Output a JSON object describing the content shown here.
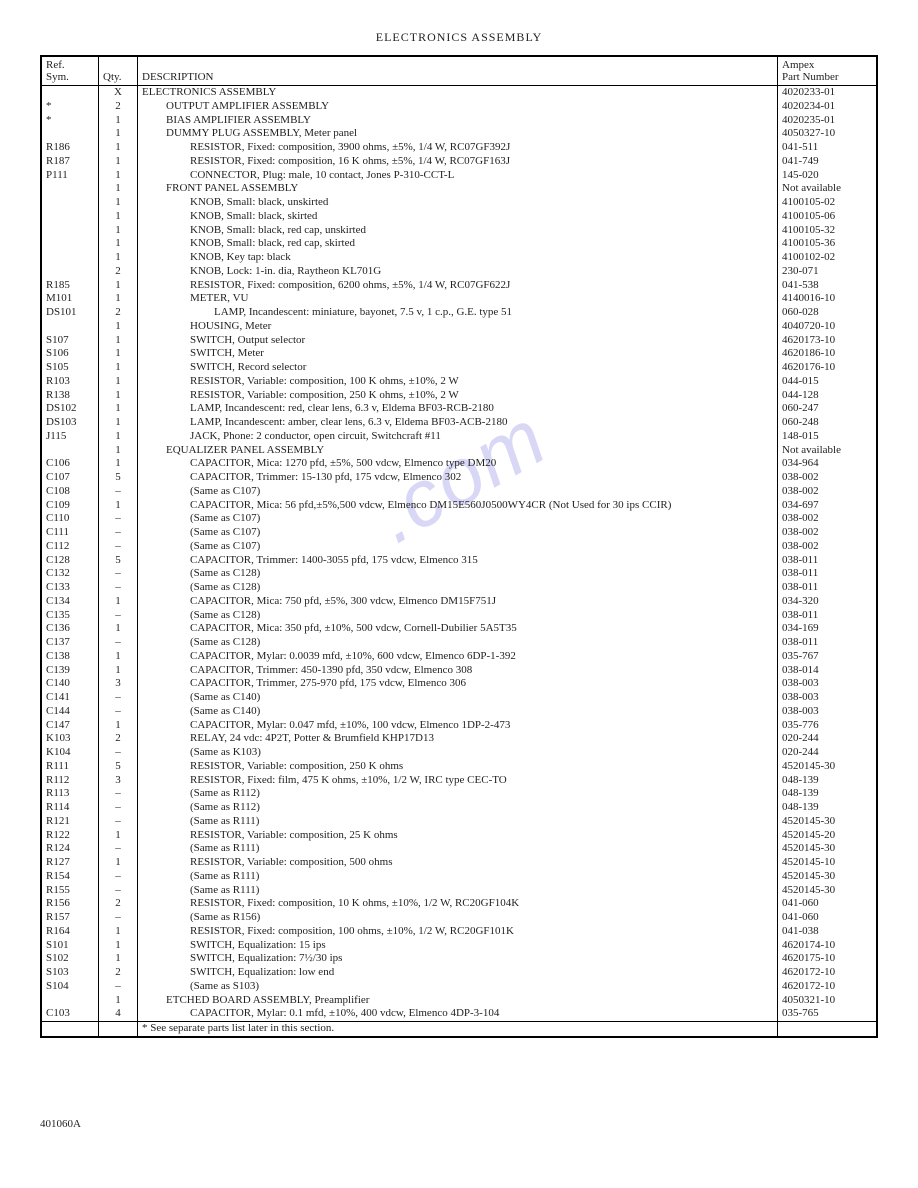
{
  "page_title": "ELECTRONICS ASSEMBLY",
  "doc_footer": "401060A",
  "headers": {
    "ref1": "Ref.",
    "ref2": "Sym.",
    "qty": "Qty.",
    "desc": "DESCRIPTION",
    "part1": "Ampex",
    "part2": "Part Number"
  },
  "footnote": "*  See separate parts list later in this section.",
  "rows": [
    {
      "ref": "",
      "qty": "X",
      "indent": 0,
      "desc": "ELECTRONICS ASSEMBLY",
      "part": "4020233-01"
    },
    {
      "ref": "*",
      "qty": "2",
      "indent": 1,
      "desc": "OUTPUT AMPLIFIER ASSEMBLY",
      "part": "4020234-01"
    },
    {
      "ref": "*",
      "qty": "1",
      "indent": 1,
      "desc": "BIAS AMPLIFIER ASSEMBLY",
      "part": "4020235-01"
    },
    {
      "ref": "",
      "qty": "1",
      "indent": 1,
      "desc": "DUMMY PLUG ASSEMBLY, Meter panel",
      "part": "4050327-10"
    },
    {
      "ref": "R186",
      "qty": "1",
      "indent": 2,
      "desc": "RESISTOR, Fixed: composition, 3900 ohms, ±5%, 1/4 W, RC07GF392J",
      "part": "041-511"
    },
    {
      "ref": "R187",
      "qty": "1",
      "indent": 2,
      "desc": "RESISTOR, Fixed: composition, 16 K ohms, ±5%, 1/4 W, RC07GF163J",
      "part": "041-749"
    },
    {
      "ref": "P111",
      "qty": "1",
      "indent": 2,
      "desc": "CONNECTOR, Plug: male, 10 contact, Jones P-310-CCT-L",
      "part": "145-020"
    },
    {
      "ref": "",
      "qty": "1",
      "indent": 1,
      "desc": "FRONT PANEL ASSEMBLY",
      "part": "Not available"
    },
    {
      "ref": "",
      "qty": "1",
      "indent": 2,
      "desc": "KNOB, Small: black, unskirted",
      "part": "4100105-02"
    },
    {
      "ref": "",
      "qty": "1",
      "indent": 2,
      "desc": "KNOB, Small: black, skirted",
      "part": "4100105-06"
    },
    {
      "ref": "",
      "qty": "1",
      "indent": 2,
      "desc": "KNOB, Small: black, red cap, unskirted",
      "part": "4100105-32"
    },
    {
      "ref": "",
      "qty": "1",
      "indent": 2,
      "desc": "KNOB, Small: black, red cap, skirted",
      "part": "4100105-36"
    },
    {
      "ref": "",
      "qty": "1",
      "indent": 2,
      "desc": "KNOB, Key tap: black",
      "part": "4100102-02"
    },
    {
      "ref": "",
      "qty": "2",
      "indent": 2,
      "desc": "KNOB, Lock: 1-in. dia, Raytheon KL701G",
      "part": "230-071"
    },
    {
      "ref": "R185",
      "qty": "1",
      "indent": 2,
      "desc": "RESISTOR, Fixed: composition, 6200 ohms, ±5%, 1/4 W, RC07GF622J",
      "part": "041-538"
    },
    {
      "ref": "M101",
      "qty": "1",
      "indent": 2,
      "desc": "METER, VU",
      "part": "4140016-10"
    },
    {
      "ref": "DS101",
      "qty": "2",
      "indent": 3,
      "desc": "LAMP, Incandescent: miniature, bayonet, 7.5 v, 1 c.p., G.E. type 51",
      "part": "060-028"
    },
    {
      "ref": "",
      "qty": "1",
      "indent": 2,
      "desc": "HOUSING, Meter",
      "part": "4040720-10"
    },
    {
      "ref": "S107",
      "qty": "1",
      "indent": 2,
      "desc": "SWITCH, Output selector",
      "part": "4620173-10"
    },
    {
      "ref": "S106",
      "qty": "1",
      "indent": 2,
      "desc": "SWITCH, Meter",
      "part": "4620186-10"
    },
    {
      "ref": "S105",
      "qty": "1",
      "indent": 2,
      "desc": "SWITCH, Record selector",
      "part": "4620176-10"
    },
    {
      "ref": "R103",
      "qty": "1",
      "indent": 2,
      "desc": "RESISTOR, Variable: composition, 100 K ohms, ±10%, 2 W",
      "part": "044-015"
    },
    {
      "ref": "R138",
      "qty": "1",
      "indent": 2,
      "desc": "RESISTOR, Variable: composition, 250 K ohms, ±10%, 2 W",
      "part": "044-128"
    },
    {
      "ref": "DS102",
      "qty": "1",
      "indent": 2,
      "desc": "LAMP, Incandescent: red, clear lens, 6.3 v, Eldema BF03-RCB-2180",
      "part": "060-247"
    },
    {
      "ref": "DS103",
      "qty": "1",
      "indent": 2,
      "desc": "LAMP, Incandescent: amber, clear lens, 6.3 v, Eldema BF03-ACB-2180",
      "part": "060-248"
    },
    {
      "ref": "J115",
      "qty": "1",
      "indent": 2,
      "desc": "JACK, Phone: 2 conductor, open circuit, Switchcraft #11",
      "part": "148-015"
    },
    {
      "ref": "",
      "qty": "1",
      "indent": 1,
      "desc": "EQUALIZER PANEL ASSEMBLY",
      "part": "Not available"
    },
    {
      "ref": "C106",
      "qty": "1",
      "indent": 2,
      "desc": "CAPACITOR, Mica: 1270 pfd, ±5%, 500 vdcw, Elmenco type DM20",
      "part": "034-964"
    },
    {
      "ref": "C107",
      "qty": "5",
      "indent": 2,
      "desc": "CAPACITOR, Trimmer: 15-130 pfd, 175 vdcw, Elmenco 302",
      "part": "038-002"
    },
    {
      "ref": "C108",
      "qty": "–",
      "indent": 2,
      "desc": "(Same as C107)",
      "part": "038-002"
    },
    {
      "ref": "C109",
      "qty": "1",
      "indent": 2,
      "desc": "CAPACITOR, Mica: 56 pfd,±5%,500 vdcw, Elmenco DM15E560J0500WY4CR (Not Used for 30 ips CCIR)",
      "part": "034-697"
    },
    {
      "ref": "C110",
      "qty": "–",
      "indent": 2,
      "desc": "(Same as C107)",
      "part": "038-002"
    },
    {
      "ref": "C111",
      "qty": "–",
      "indent": 2,
      "desc": "(Same as C107)",
      "part": "038-002"
    },
    {
      "ref": "C112",
      "qty": "–",
      "indent": 2,
      "desc": "(Same as C107)",
      "part": "038-002"
    },
    {
      "ref": "C128",
      "qty": "5",
      "indent": 2,
      "desc": "CAPACITOR, Trimmer: 1400-3055 pfd, 175 vdcw, Elmenco 315",
      "part": "038-011"
    },
    {
      "ref": "C132",
      "qty": "–",
      "indent": 2,
      "desc": "(Same as C128)",
      "part": "038-011"
    },
    {
      "ref": "C133",
      "qty": "–",
      "indent": 2,
      "desc": "(Same as C128)",
      "part": "038-011"
    },
    {
      "ref": "C134",
      "qty": "1",
      "indent": 2,
      "desc": "CAPACITOR, Mica: 750 pfd, ±5%, 300 vdcw, Elmenco DM15F751J",
      "part": "034-320"
    },
    {
      "ref": "C135",
      "qty": "–",
      "indent": 2,
      "desc": "(Same as C128)",
      "part": "038-011"
    },
    {
      "ref": "C136",
      "qty": "1",
      "indent": 2,
      "desc": "CAPACITOR, Mica: 350 pfd, ±10%, 500 vdcw, Cornell-Dubilier 5A5T35",
      "part": "034-169"
    },
    {
      "ref": "C137",
      "qty": "–",
      "indent": 2,
      "desc": "(Same as C128)",
      "part": "038-011"
    },
    {
      "ref": "C138",
      "qty": "1",
      "indent": 2,
      "desc": "CAPACITOR, Mylar: 0.0039 mfd, ±10%, 600 vdcw, Elmenco 6DP-1-392",
      "part": "035-767"
    },
    {
      "ref": "C139",
      "qty": "1",
      "indent": 2,
      "desc": "CAPACITOR, Trimmer: 450-1390 pfd, 350 vdcw, Elmenco 308",
      "part": "038-014"
    },
    {
      "ref": "C140",
      "qty": "3",
      "indent": 2,
      "desc": "CAPACITOR, Trimmer, 275-970 pfd, 175 vdcw, Elmenco 306",
      "part": "038-003"
    },
    {
      "ref": "C141",
      "qty": "–",
      "indent": 2,
      "desc": "(Same as C140)",
      "part": "038-003"
    },
    {
      "ref": "C144",
      "qty": "–",
      "indent": 2,
      "desc": "(Same as C140)",
      "part": "038-003"
    },
    {
      "ref": "C147",
      "qty": "1",
      "indent": 2,
      "desc": "CAPACITOR, Mylar: 0.047 mfd, ±10%, 100 vdcw, Elmenco 1DP-2-473",
      "part": "035-776"
    },
    {
      "ref": "K103",
      "qty": "2",
      "indent": 2,
      "desc": "RELAY, 24 vdc: 4P2T, Potter & Brumfield KHP17D13",
      "part": "020-244"
    },
    {
      "ref": "K104",
      "qty": "–",
      "indent": 2,
      "desc": "(Same as K103)",
      "part": "020-244"
    },
    {
      "ref": "R111",
      "qty": "5",
      "indent": 2,
      "desc": "RESISTOR, Variable: composition, 250 K ohms",
      "part": "4520145-30"
    },
    {
      "ref": "R112",
      "qty": "3",
      "indent": 2,
      "desc": "RESISTOR, Fixed: film, 475 K ohms, ±10%, 1/2 W, IRC type CEC-TO",
      "part": "048-139"
    },
    {
      "ref": "R113",
      "qty": "–",
      "indent": 2,
      "desc": "(Same as R112)",
      "part": "048-139"
    },
    {
      "ref": "R114",
      "qty": "–",
      "indent": 2,
      "desc": "(Same as R112)",
      "part": "048-139"
    },
    {
      "ref": "R121",
      "qty": "–",
      "indent": 2,
      "desc": "(Same as R111)",
      "part": "4520145-30"
    },
    {
      "ref": "R122",
      "qty": "1",
      "indent": 2,
      "desc": "RESISTOR, Variable: composition, 25 K ohms",
      "part": "4520145-20"
    },
    {
      "ref": "R124",
      "qty": "–",
      "indent": 2,
      "desc": "(Same as R111)",
      "part": "4520145-30"
    },
    {
      "ref": "R127",
      "qty": "1",
      "indent": 2,
      "desc": "RESISTOR, Variable: composition, 500 ohms",
      "part": "4520145-10"
    },
    {
      "ref": "R154",
      "qty": "–",
      "indent": 2,
      "desc": "(Same as R111)",
      "part": "4520145-30"
    },
    {
      "ref": "R155",
      "qty": "–",
      "indent": 2,
      "desc": "(Same as R111)",
      "part": "4520145-30"
    },
    {
      "ref": "R156",
      "qty": "2",
      "indent": 2,
      "desc": "RESISTOR, Fixed: composition, 10 K ohms, ±10%, 1/2 W, RC20GF104K",
      "part": "041-060"
    },
    {
      "ref": "R157",
      "qty": "–",
      "indent": 2,
      "desc": "(Same as R156)",
      "part": "041-060"
    },
    {
      "ref": "R164",
      "qty": "1",
      "indent": 2,
      "desc": "RESISTOR, Fixed: composition, 100 ohms, ±10%, 1/2 W, RC20GF101K",
      "part": "041-038"
    },
    {
      "ref": "S101",
      "qty": "1",
      "indent": 2,
      "desc": "SWITCH, Equalization: 15 ips",
      "part": "4620174-10"
    },
    {
      "ref": "S102",
      "qty": "1",
      "indent": 2,
      "desc": "SWITCH, Equalization: 7½/30 ips",
      "part": "4620175-10"
    },
    {
      "ref": "S103",
      "qty": "2",
      "indent": 2,
      "desc": "SWITCH, Equalization: low end",
      "part": "4620172-10"
    },
    {
      "ref": "S104",
      "qty": "–",
      "indent": 2,
      "desc": "(Same as S103)",
      "part": "4620172-10"
    },
    {
      "ref": "",
      "qty": "1",
      "indent": 1,
      "desc": "ETCHED BOARD ASSEMBLY, Preamplifier",
      "part": "4050321-10"
    },
    {
      "ref": "C103",
      "qty": "4",
      "indent": 2,
      "desc": "CAPACITOR, Mylar: 0.1 mfd, ±10%, 400 vdcw, Elmenco 4DP-3-104",
      "part": "035-765"
    }
  ]
}
